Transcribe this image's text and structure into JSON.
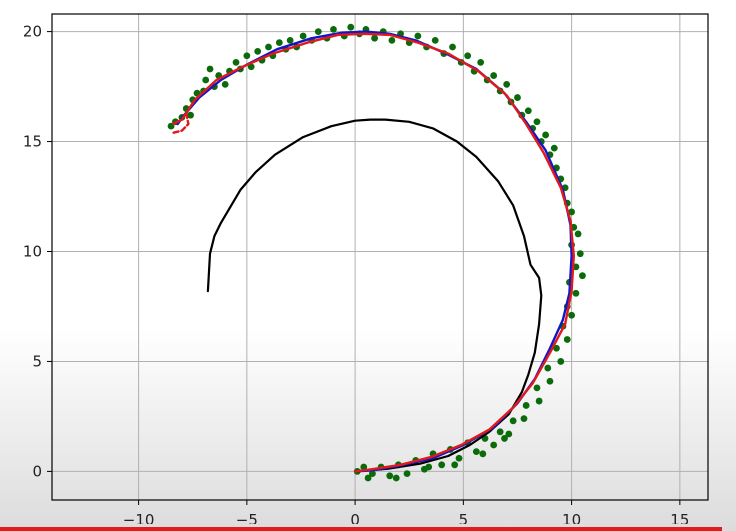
{
  "chart_data": {
    "type": "scatter",
    "title": "",
    "xlabel": "",
    "ylabel": "",
    "xlim": [
      -14,
      16.3
    ],
    "ylim": [
      -1.3,
      20.8
    ],
    "grid": true,
    "x_ticks": [
      -10,
      -5,
      0,
      5,
      10,
      15
    ],
    "y_ticks": [
      0,
      5,
      10,
      15,
      20
    ],
    "x_tick_labels": [
      "−10",
      "−5",
      "0",
      "5",
      "10",
      "15"
    ],
    "y_tick_labels": [
      "0",
      "5",
      "10",
      "15",
      "20"
    ],
    "series": [
      {
        "kind": "line",
        "color": "#000000",
        "points": [
          [
            -6.8,
            8.2
          ],
          [
            -6.7,
            9.9
          ],
          [
            -6.5,
            10.7
          ],
          [
            -6.2,
            11.3
          ],
          [
            -5.3,
            12.8
          ],
          [
            -4.6,
            13.6
          ],
          [
            -3.7,
            14.4
          ],
          [
            -2.4,
            15.2
          ],
          [
            -1.1,
            15.7
          ],
          [
            0,
            15.95
          ],
          [
            0.7,
            16.0
          ],
          [
            1.4,
            16.0
          ],
          [
            2.5,
            15.9
          ],
          [
            3.6,
            15.6
          ],
          [
            4.7,
            15.0
          ],
          [
            5.6,
            14.3
          ],
          [
            6.6,
            13.2
          ],
          [
            7.3,
            12.1
          ],
          [
            7.8,
            10.7
          ],
          [
            8.1,
            9.4
          ],
          [
            8.5,
            8.8
          ],
          [
            8.6,
            8.0
          ],
          [
            8.5,
            6.7
          ],
          [
            8.3,
            5.4
          ],
          [
            8.0,
            4.4
          ],
          [
            7.7,
            3.6
          ],
          [
            7.1,
            2.6
          ],
          [
            6.2,
            1.8
          ],
          [
            5.3,
            1.2
          ],
          [
            4.3,
            0.7
          ],
          [
            3.0,
            0.35
          ],
          [
            1.5,
            0.12
          ],
          [
            0,
            0
          ]
        ]
      },
      {
        "kind": "line",
        "color": "#1515c8",
        "points": [
          [
            -8.2,
            15.8
          ],
          [
            -7.9,
            16.2
          ],
          [
            -7.2,
            17.0
          ],
          [
            -6.2,
            17.8
          ],
          [
            -5.0,
            18.5
          ],
          [
            -3.6,
            19.2
          ],
          [
            -2.0,
            19.7
          ],
          [
            -0.6,
            19.95
          ],
          [
            0.5,
            20.0
          ],
          [
            1.6,
            19.9
          ],
          [
            2.8,
            19.6
          ],
          [
            4.2,
            19.0
          ],
          [
            5.6,
            18.3
          ],
          [
            6.9,
            17.2
          ],
          [
            7.9,
            15.9
          ],
          [
            8.8,
            14.6
          ],
          [
            9.6,
            12.8
          ],
          [
            9.95,
            11.2
          ],
          [
            10.0,
            9.8
          ],
          [
            9.9,
            8.1
          ],
          [
            9.6,
            6.9
          ],
          [
            9.0,
            5.6
          ],
          [
            8.3,
            4.2
          ],
          [
            7.5,
            3.1
          ],
          [
            6.4,
            2.0
          ],
          [
            5.0,
            1.2
          ],
          [
            3.6,
            0.6
          ],
          [
            2.0,
            0.25
          ],
          [
            0.8,
            0.05
          ],
          [
            0,
            0
          ]
        ]
      },
      {
        "kind": "line",
        "color": "#e01a1a",
        "points": [
          [
            -8.4,
            15.8
          ],
          [
            -8.0,
            16.0
          ],
          [
            -7.4,
            16.9
          ],
          [
            -6.4,
            17.8
          ],
          [
            -5.2,
            18.4
          ],
          [
            -3.8,
            19.0
          ],
          [
            -2.2,
            19.5
          ],
          [
            -0.8,
            19.85
          ],
          [
            0.4,
            19.9
          ],
          [
            1.6,
            19.85
          ],
          [
            2.9,
            19.5
          ],
          [
            4.3,
            19.0
          ],
          [
            5.7,
            18.2
          ],
          [
            7.0,
            17.1
          ],
          [
            7.9,
            15.8
          ],
          [
            8.7,
            14.5
          ],
          [
            9.5,
            12.9
          ],
          [
            9.95,
            11.4
          ],
          [
            10.1,
            9.8
          ],
          [
            10.0,
            8.2
          ],
          [
            9.7,
            6.7
          ],
          [
            9.0,
            5.4
          ],
          [
            8.2,
            4.0
          ],
          [
            7.3,
            2.9
          ],
          [
            6.2,
            1.9
          ],
          [
            4.9,
            1.2
          ],
          [
            3.5,
            0.65
          ],
          [
            2.1,
            0.3
          ],
          [
            0.8,
            0.1
          ],
          [
            0,
            0
          ]
        ]
      },
      {
        "kind": "line",
        "style": "dashed",
        "color": "#e01a1a",
        "points": [
          [
            -7.8,
            16.3
          ],
          [
            -7.7,
            15.8
          ],
          [
            -8.0,
            15.5
          ],
          [
            -8.4,
            15.4
          ]
        ]
      },
      {
        "kind": "points",
        "color": "#0b6b0b",
        "points": [
          [
            -8.5,
            15.7
          ],
          [
            -8.3,
            15.9
          ],
          [
            -8.0,
            16.1
          ],
          [
            -7.8,
            16.5
          ],
          [
            -7.6,
            16.2
          ],
          [
            -7.5,
            16.9
          ],
          [
            -7.3,
            17.2
          ],
          [
            -7.0,
            17.3
          ],
          [
            -6.9,
            17.8
          ],
          [
            -6.7,
            18.3
          ],
          [
            -6.5,
            17.5
          ],
          [
            -6.3,
            18.0
          ],
          [
            -6.0,
            17.6
          ],
          [
            -5.8,
            18.2
          ],
          [
            -5.5,
            18.6
          ],
          [
            -5.3,
            18.3
          ],
          [
            -5.0,
            18.9
          ],
          [
            -4.8,
            18.4
          ],
          [
            -4.5,
            19.1
          ],
          [
            -4.3,
            18.7
          ],
          [
            -4.0,
            19.3
          ],
          [
            -3.8,
            18.9
          ],
          [
            -3.5,
            19.5
          ],
          [
            -3.2,
            19.2
          ],
          [
            -3.0,
            19.6
          ],
          [
            -2.7,
            19.3
          ],
          [
            -2.4,
            19.8
          ],
          [
            -2.0,
            19.6
          ],
          [
            -1.7,
            20.0
          ],
          [
            -1.3,
            19.7
          ],
          [
            -1.0,
            20.1
          ],
          [
            -0.5,
            19.8
          ],
          [
            -0.2,
            20.2
          ],
          [
            0.2,
            19.9
          ],
          [
            0.5,
            20.1
          ],
          [
            0.9,
            19.7
          ],
          [
            1.3,
            20.0
          ],
          [
            1.7,
            19.6
          ],
          [
            2.1,
            19.9
          ],
          [
            2.5,
            19.5
          ],
          [
            2.9,
            19.8
          ],
          [
            3.3,
            19.3
          ],
          [
            3.7,
            19.6
          ],
          [
            4.1,
            19.0
          ],
          [
            4.5,
            19.3
          ],
          [
            4.9,
            18.6
          ],
          [
            5.2,
            18.9
          ],
          [
            5.5,
            18.2
          ],
          [
            5.8,
            18.6
          ],
          [
            6.1,
            17.8
          ],
          [
            6.4,
            18.0
          ],
          [
            6.7,
            17.3
          ],
          [
            7.0,
            17.6
          ],
          [
            7.2,
            16.8
          ],
          [
            7.5,
            17.0
          ],
          [
            7.7,
            16.2
          ],
          [
            8.0,
            16.4
          ],
          [
            8.2,
            15.6
          ],
          [
            8.4,
            15.9
          ],
          [
            8.6,
            15.0
          ],
          [
            8.8,
            15.3
          ],
          [
            9.0,
            14.4
          ],
          [
            9.2,
            14.7
          ],
          [
            9.3,
            13.8
          ],
          [
            9.5,
            13.3
          ],
          [
            9.7,
            12.9
          ],
          [
            9.8,
            12.2
          ],
          [
            10.0,
            11.8
          ],
          [
            10.1,
            11.1
          ],
          [
            10.3,
            10.8
          ],
          [
            10.0,
            10.3
          ],
          [
            10.4,
            9.9
          ],
          [
            10.2,
            9.3
          ],
          [
            10.5,
            8.9
          ],
          [
            9.9,
            8.6
          ],
          [
            10.2,
            8.1
          ],
          [
            9.8,
            7.5
          ],
          [
            10.0,
            7.1
          ],
          [
            9.6,
            6.6
          ],
          [
            9.8,
            6.0
          ],
          [
            9.3,
            5.6
          ],
          [
            9.5,
            5.0
          ],
          [
            8.9,
            4.7
          ],
          [
            9.0,
            4.1
          ],
          [
            8.4,
            3.8
          ],
          [
            8.5,
            3.2
          ],
          [
            7.9,
            3.0
          ],
          [
            7.8,
            2.4
          ],
          [
            7.3,
            2.3
          ],
          [
            7.1,
            1.7
          ],
          [
            6.7,
            1.8
          ],
          [
            6.4,
            1.2
          ],
          [
            6.0,
            1.5
          ],
          [
            5.6,
            0.9
          ],
          [
            5.2,
            1.3
          ],
          [
            4.8,
            0.6
          ],
          [
            4.4,
            1.0
          ],
          [
            4.0,
            0.3
          ],
          [
            3.6,
            0.8
          ],
          [
            3.2,
            0.1
          ],
          [
            2.8,
            0.5
          ],
          [
            2.4,
            -0.1
          ],
          [
            2.0,
            0.3
          ],
          [
            1.6,
            -0.2
          ],
          [
            1.2,
            0.2
          ],
          [
            0.8,
            -0.1
          ],
          [
            0.4,
            0.2
          ],
          [
            0.1,
            0.0
          ],
          [
            0.6,
            -0.3
          ],
          [
            1.9,
            -0.3
          ],
          [
            3.4,
            0.2
          ],
          [
            4.6,
            0.3
          ],
          [
            5.9,
            0.8
          ],
          [
            6.9,
            1.5
          ]
        ]
      }
    ]
  }
}
